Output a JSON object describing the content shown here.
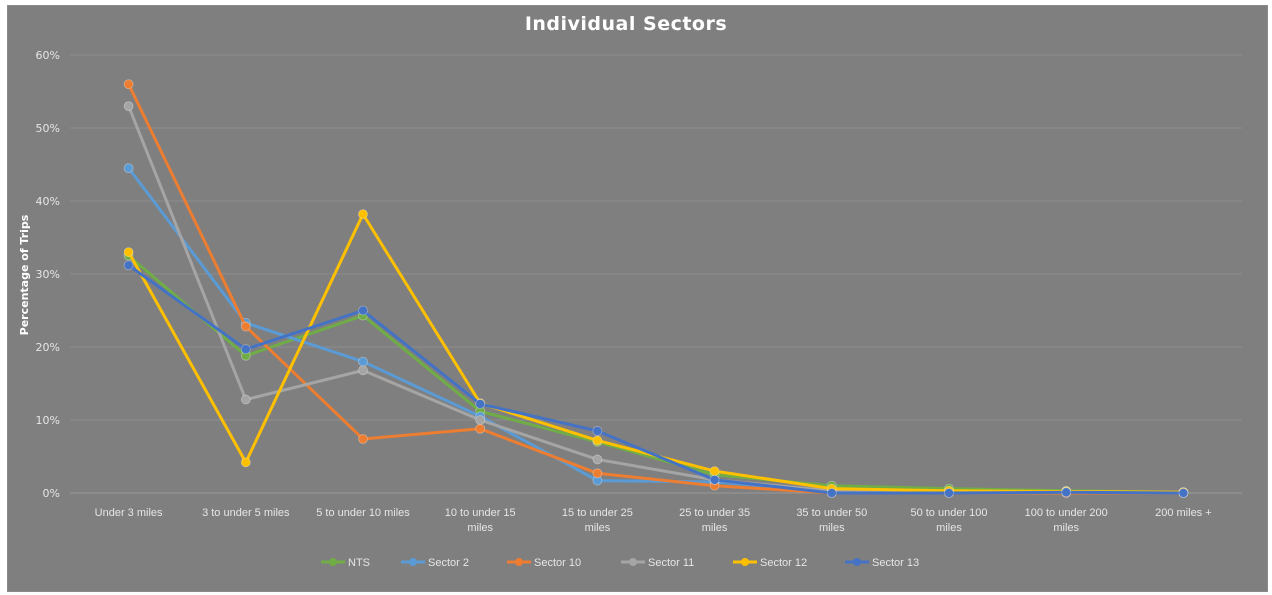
{
  "chart_data": {
    "type": "line",
    "title": "Individual Sectors",
    "ylabel": "Percentage of Trips",
    "xlabel": "",
    "ylim": [
      0,
      60
    ],
    "y_ticks": [
      "0%",
      "10%",
      "20%",
      "30%",
      "40%",
      "50%",
      "60%"
    ],
    "y_tick_values": [
      0,
      10,
      20,
      30,
      40,
      50,
      60
    ],
    "categories": [
      [
        "Under 3 miles"
      ],
      [
        "3 to under 5 miles"
      ],
      [
        "5 to under 10 miles"
      ],
      [
        "10 to under 15",
        "miles"
      ],
      [
        "15 to under 25",
        "miles"
      ],
      [
        "25 to under 35",
        "miles"
      ],
      [
        "35 to under 50",
        "miles"
      ],
      [
        "50 to under 100",
        "miles"
      ],
      [
        "100 to under 200",
        "miles"
      ],
      [
        "200 miles +"
      ]
    ],
    "grid": true,
    "legend_position": "bottom",
    "series": [
      {
        "name": "NTS",
        "color": "#70ad47",
        "values": [
          32.5,
          18.8,
          24.3,
          11.2,
          7.0,
          2.5,
          1.0,
          0.6,
          0.3,
          0.1
        ]
      },
      {
        "name": "Sector 2",
        "color": "#5b9bd5",
        "values": [
          44.5,
          23.3,
          18.0,
          10.5,
          1.7,
          1.5,
          0.3,
          0.2,
          0.2,
          0.0
        ]
      },
      {
        "name": "Sector 10",
        "color": "#ed7d31",
        "values": [
          56.0,
          22.8,
          7.4,
          8.8,
          2.7,
          1.0,
          0.0,
          0.0,
          0.0,
          0.0
        ]
      },
      {
        "name": "Sector 11",
        "color": "#a5a5a5",
        "values": [
          53.0,
          12.8,
          16.8,
          10.0,
          4.6,
          1.8,
          0.3,
          0.2,
          0.2,
          0.1
        ]
      },
      {
        "name": "Sector 12",
        "color": "#ffc000",
        "values": [
          33.0,
          4.2,
          38.2,
          12.3,
          7.2,
          3.0,
          0.6,
          0.3,
          0.2,
          0.1
        ]
      },
      {
        "name": "Sector 13",
        "color": "#4472c4",
        "values": [
          31.2,
          19.7,
          25.0,
          12.2,
          8.5,
          1.8,
          0.0,
          0.0,
          0.1,
          0.0
        ]
      }
    ]
  }
}
